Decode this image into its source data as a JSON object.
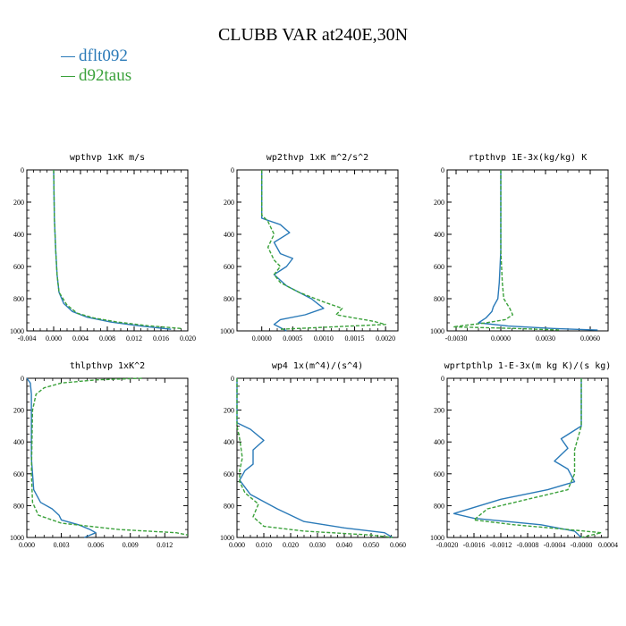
{
  "title": "CLUBB VAR at240E,30N",
  "colors": {
    "series_1": "#2a7ab8",
    "series_2": "#3aa13a"
  },
  "legend": [
    {
      "label": "dflt092",
      "color": "#2a7ab8"
    },
    {
      "label": "d92taus",
      "color": "#3aa13a"
    }
  ],
  "chart_data": [
    {
      "type": "line",
      "title": "wpthvp  1xK m/s",
      "xlim": [
        -0.004,
        0.02
      ],
      "ylim": [
        1000,
        0
      ],
      "xticks": [
        "-0.004",
        "0.000",
        "0.004",
        "0.008",
        "0.012",
        "0.016",
        "0.020"
      ],
      "xtick_values": [
        -0.004,
        0.0,
        0.004,
        0.008,
        0.012,
        0.016,
        0.02
      ],
      "yticks": [
        "0",
        "200",
        "400",
        "600",
        "800",
        "1000"
      ],
      "series": [
        {
          "name": "dflt092",
          "style": "solid",
          "x": [
            0.0,
            0.0001,
            0.0003,
            0.0005,
            0.0008,
            0.0015,
            0.0028,
            0.005,
            0.0085,
            0.013,
            0.0175
          ],
          "y": [
            0,
            300,
            500,
            650,
            760,
            830,
            880,
            915,
            945,
            970,
            990
          ]
        },
        {
          "name": "d92taus",
          "style": "dashed",
          "x": [
            0.0,
            0.0001,
            0.0003,
            0.0005,
            0.0008,
            0.002,
            0.0035,
            0.006,
            0.0095,
            0.014,
            0.019
          ],
          "y": [
            0,
            300,
            500,
            650,
            760,
            840,
            890,
            920,
            945,
            968,
            985
          ]
        }
      ]
    },
    {
      "type": "line",
      "title": "wp2thvp  1xK m^2/s^2",
      "xlim": [
        -0.0004,
        0.0022
      ],
      "ylim": [
        1000,
        0
      ],
      "xticks": [
        "0.0000",
        "0.0005",
        "0.0010",
        "0.0015",
        "0.0020"
      ],
      "xtick_values": [
        0.0,
        0.0005,
        0.001,
        0.0015,
        0.002
      ],
      "yticks": [
        "0",
        "200",
        "400",
        "600",
        "800",
        "1000"
      ],
      "series": [
        {
          "name": "dflt092",
          "style": "solid",
          "x": [
            0.0,
            0.0,
            0.0003,
            0.00045,
            0.0002,
            0.0003,
            0.0005,
            0.0004,
            0.0002,
            0.0004,
            0.0008,
            0.001,
            0.0007,
            0.0003,
            0.0002,
            0.0004
          ],
          "y": [
            0,
            300,
            340,
            390,
            450,
            520,
            550,
            600,
            650,
            720,
            800,
            860,
            900,
            930,
            960,
            1000
          ]
        },
        {
          "name": "d92taus",
          "style": "dashed",
          "x": [
            0.0,
            0.0,
            0.0001,
            0.0002,
            0.0001,
            0.0002,
            0.0003,
            0.0002,
            0.0003,
            0.0006,
            0.001,
            0.0013,
            0.0012,
            0.0018,
            0.002,
            0.0003
          ],
          "y": [
            0,
            280,
            320,
            400,
            480,
            560,
            600,
            650,
            700,
            760,
            820,
            860,
            900,
            940,
            960,
            990
          ]
        }
      ]
    },
    {
      "type": "line",
      "title": "rtpthvp  1E-3x(kg/kg) K",
      "xlim": [
        -0.0036,
        0.0072
      ],
      "ylim": [
        1000,
        0
      ],
      "xticks": [
        "-0.0030",
        "0.0000",
        "0.0030",
        "0.0060"
      ],
      "xtick_values": [
        -0.003,
        0.0,
        0.003,
        0.006
      ],
      "yticks": [
        "0",
        "200",
        "400",
        "600",
        "800",
        "1000"
      ],
      "series": [
        {
          "name": "dflt092",
          "style": "solid",
          "x": [
            0.0,
            0.0,
            -0.0001,
            -0.0002,
            -0.0005,
            -0.0006,
            -0.001,
            -0.0015,
            0.0005,
            0.0035,
            0.0065
          ],
          "y": [
            0,
            500,
            700,
            800,
            850,
            880,
            920,
            950,
            970,
            985,
            995
          ]
        },
        {
          "name": "d92taus",
          "style": "dashed",
          "x": [
            0.0,
            0.0,
            0.0001,
            0.0002,
            0.0006,
            0.0008,
            0.0003,
            -0.001,
            -0.0032,
            0.001,
            0.004
          ],
          "y": [
            0,
            500,
            700,
            800,
            860,
            900,
            930,
            950,
            975,
            985,
            995
          ]
        }
      ]
    },
    {
      "type": "line",
      "title": "thlpthvp  1xK^2",
      "xlim": [
        0.0,
        0.014
      ],
      "ylim": [
        1000,
        0
      ],
      "xticks": [
        "0.000",
        "0.003",
        "0.006",
        "0.009",
        "0.012"
      ],
      "xtick_values": [
        0.0,
        0.003,
        0.006,
        0.009,
        0.012
      ],
      "yticks": [
        "0",
        "200",
        "400",
        "600",
        "800",
        "1000"
      ],
      "series": [
        {
          "name": "dflt092",
          "style": "solid",
          "x": [
            0.0,
            0.0003,
            0.0004,
            0.0004,
            0.0006,
            0.0012,
            0.0022,
            0.0028,
            0.003,
            0.0045,
            0.0055,
            0.006,
            0.005
          ],
          "y": [
            0,
            30,
            100,
            500,
            700,
            780,
            820,
            860,
            890,
            920,
            950,
            970,
            1000
          ]
        },
        {
          "name": "d92taus",
          "style": "dashed",
          "x": [
            0.01,
            0.006,
            0.003,
            0.0015,
            0.0008,
            0.0005,
            0.0004,
            0.0005,
            0.001,
            0.003,
            0.008,
            0.013,
            0.014
          ],
          "y": [
            0,
            10,
            30,
            60,
            100,
            200,
            600,
            780,
            860,
            910,
            950,
            970,
            985
          ]
        }
      ]
    },
    {
      "type": "line",
      "title": "wp4  1x(m^4)/(s^4)",
      "xlim": [
        0.0,
        0.06
      ],
      "ylim": [
        1000,
        0
      ],
      "xticks": [
        "0.000",
        "0.010",
        "0.020",
        "0.030",
        "0.040",
        "0.050",
        "0.060"
      ],
      "xtick_values": [
        0.0,
        0.01,
        0.02,
        0.03,
        0.04,
        0.05,
        0.06
      ],
      "yticks": [
        "0",
        "200",
        "400",
        "600",
        "800",
        "1000"
      ],
      "series": [
        {
          "name": "dflt092",
          "style": "solid",
          "x": [
            0.0,
            0.0,
            0.005,
            0.01,
            0.006,
            0.006,
            0.003,
            0.001,
            0.005,
            0.015,
            0.025,
            0.04,
            0.055,
            0.058
          ],
          "y": [
            0,
            280,
            320,
            390,
            450,
            540,
            580,
            640,
            730,
            820,
            900,
            940,
            970,
            1000
          ]
        },
        {
          "name": "d92taus",
          "style": "dashed",
          "x": [
            0.0,
            0.0,
            0.001,
            0.002,
            0.001,
            0.001,
            0.003,
            0.008,
            0.006,
            0.01,
            0.025,
            0.05,
            0.058
          ],
          "y": [
            0,
            300,
            380,
            500,
            580,
            650,
            720,
            790,
            870,
            930,
            960,
            985,
            1000
          ]
        }
      ]
    },
    {
      "type": "line",
      "title": "wprtpthlp  1-E-3x(m kg K)/(s kg)",
      "xlim": [
        -0.002,
        0.0004
      ],
      "ylim": [
        1000,
        0
      ],
      "xticks": [
        "-0.0020",
        "-0.0016",
        "-0.0012",
        "-0.0008",
        "-0.0004",
        "-0.0000",
        "0.0004"
      ],
      "xtick_values": [
        -0.002,
        -0.0016,
        -0.0012,
        -0.0008,
        -0.0004,
        0.0,
        0.0004
      ],
      "yticks": [
        "0",
        "200",
        "400",
        "600",
        "800",
        "1000"
      ],
      "series": [
        {
          "name": "dflt092",
          "style": "solid",
          "x": [
            0.0,
            0.0,
            -0.0003,
            -0.0002,
            -0.0004,
            -0.0002,
            -0.0001,
            -0.0005,
            -0.0012,
            -0.0019,
            -0.0016,
            -0.0006,
            -0.0001,
            0.0
          ],
          "y": [
            0,
            300,
            380,
            440,
            520,
            570,
            650,
            700,
            760,
            850,
            880,
            920,
            960,
            1000
          ]
        },
        {
          "name": "d92taus",
          "style": "dashed",
          "x": [
            0.0,
            0.0,
            -0.0001,
            -0.0001,
            -0.0002,
            -0.0008,
            -0.0014,
            -0.0016,
            -0.001,
            -0.0002,
            0.0003,
            0.0
          ],
          "y": [
            0,
            300,
            450,
            600,
            700,
            760,
            820,
            890,
            920,
            950,
            970,
            1000
          ]
        }
      ]
    }
  ]
}
